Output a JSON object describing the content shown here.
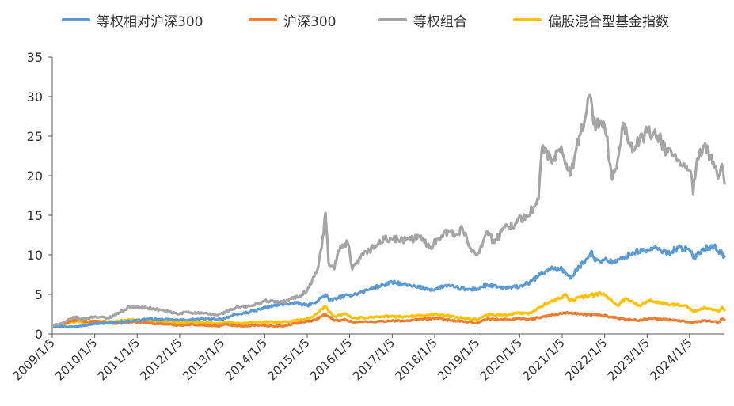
{
  "chart_data": {
    "type": "line",
    "title": "",
    "xlabel": "",
    "ylabel": "",
    "ylim": [
      0,
      35
    ],
    "yticks": [
      0,
      5,
      10,
      15,
      20,
      25,
      30,
      35
    ],
    "x_tick_labels": [
      "2009/1/5",
      "2010/1/5",
      "2011/1/5",
      "2012/1/5",
      "2013/1/5",
      "2014/1/5",
      "2015/1/5",
      "2016/1/5",
      "2017/1/5",
      "2018/1/5",
      "2019/1/5",
      "2020/1/5",
      "2021/1/5",
      "2022/1/5",
      "2023/1/5",
      "2024/1/5"
    ],
    "x_range": [
      "2009/1/5",
      "2024/10/31"
    ],
    "grid": false,
    "legend_position": "top",
    "series": [
      {
        "name": "等权相对沪深300",
        "color": "#5b9bd5",
        "points": [
          [
            "2009/1/5",
            1.0
          ],
          [
            "2009/4/1",
            0.95
          ],
          [
            "2009/7/1",
            0.9
          ],
          [
            "2009/10/1",
            1.1
          ],
          [
            "2010/1/5",
            1.3
          ],
          [
            "2010/4/1",
            1.35
          ],
          [
            "2010/7/1",
            1.5
          ],
          [
            "2010/10/1",
            1.6
          ],
          [
            "2011/1/5",
            1.7
          ],
          [
            "2011/4/1",
            1.9
          ],
          [
            "2011/7/1",
            1.85
          ],
          [
            "2011/10/1",
            1.8
          ],
          [
            "2012/1/5",
            1.75
          ],
          [
            "2012/4/1",
            1.8
          ],
          [
            "2012/7/1",
            1.9
          ],
          [
            "2012/10/1",
            1.85
          ],
          [
            "2013/1/5",
            1.9
          ],
          [
            "2013/4/1",
            2.3
          ],
          [
            "2013/7/1",
            2.6
          ],
          [
            "2013/10/1",
            2.9
          ],
          [
            "2014/1/5",
            3.3
          ],
          [
            "2014/4/1",
            3.6
          ],
          [
            "2014/7/1",
            3.8
          ],
          [
            "2014/10/1",
            3.9
          ],
          [
            "2015/1/5",
            3.6
          ],
          [
            "2015/3/1",
            3.9
          ],
          [
            "2015/5/1",
            4.5
          ],
          [
            "2015/6/15",
            5.0
          ],
          [
            "2015/7/15",
            4.2
          ],
          [
            "2015/10/1",
            4.6
          ],
          [
            "2016/1/5",
            4.9
          ],
          [
            "2016/4/1",
            5.2
          ],
          [
            "2016/7/1",
            5.7
          ],
          [
            "2016/10/1",
            6.1
          ],
          [
            "2017/1/5",
            6.5
          ],
          [
            "2017/4/1",
            6.3
          ],
          [
            "2017/7/1",
            6.0
          ],
          [
            "2017/10/1",
            5.8
          ],
          [
            "2018/1/5",
            5.6
          ],
          [
            "2018/4/1",
            6.1
          ],
          [
            "2018/7/1",
            5.9
          ],
          [
            "2018/10/1",
            5.6
          ],
          [
            "2019/1/5",
            5.7
          ],
          [
            "2019/4/1",
            6.2
          ],
          [
            "2019/7/1",
            5.9
          ],
          [
            "2019/10/1",
            5.8
          ],
          [
            "2020/1/5",
            6.0
          ],
          [
            "2020/4/1",
            6.5
          ],
          [
            "2020/7/1",
            7.5
          ],
          [
            "2020/10/1",
            8.3
          ],
          [
            "2021/1/5",
            8.2
          ],
          [
            "2021/3/15",
            7.0
          ],
          [
            "2021/6/1",
            8.5
          ],
          [
            "2021/8/1",
            9.5
          ],
          [
            "2021/9/15",
            10.5
          ],
          [
            "2021/10/15",
            9.2
          ],
          [
            "2022/1/5",
            9.4
          ],
          [
            "2022/4/1",
            9.0
          ],
          [
            "2022/7/1",
            9.8
          ],
          [
            "2022/10/1",
            10.4
          ],
          [
            "2023/1/5",
            10.6
          ],
          [
            "2023/4/1",
            10.8
          ],
          [
            "2023/7/1",
            10.2
          ],
          [
            "2023/10/1",
            10.9
          ],
          [
            "2024/1/5",
            10.6
          ],
          [
            "2024/2/5",
            9.6
          ],
          [
            "2024/5/1",
            10.8
          ],
          [
            "2024/8/1",
            11.1
          ],
          [
            "2024/10/31",
            9.8
          ]
        ]
      },
      {
        "name": "沪深300",
        "color": "#ed7d31",
        "points": [
          [
            "2009/1/5",
            1.0
          ],
          [
            "2009/4/1",
            1.3
          ],
          [
            "2009/8/1",
            1.8
          ],
          [
            "2009/10/1",
            1.6
          ],
          [
            "2010/1/5",
            1.6
          ],
          [
            "2010/7/1",
            1.3
          ],
          [
            "2010/11/1",
            1.5
          ],
          [
            "2011/4/1",
            1.4
          ],
          [
            "2011/10/1",
            1.2
          ],
          [
            "2012/1/5",
            1.1
          ],
          [
            "2012/5/1",
            1.2
          ],
          [
            "2012/12/1",
            1.0
          ],
          [
            "2013/2/1",
            1.2
          ],
          [
            "2013/6/25",
            1.0
          ],
          [
            "2013/10/1",
            1.1
          ],
          [
            "2014/6/1",
            1.0
          ],
          [
            "2014/12/1",
            1.5
          ],
          [
            "2015/3/1",
            1.7
          ],
          [
            "2015/6/8",
            2.5
          ],
          [
            "2015/8/25",
            1.7
          ],
          [
            "2015/12/1",
            1.8
          ],
          [
            "2016/2/1",
            1.5
          ],
          [
            "2016/10/1",
            1.6
          ],
          [
            "2017/6/1",
            1.7
          ],
          [
            "2018/1/20",
            2.0
          ],
          [
            "2018/6/1",
            1.7
          ],
          [
            "2018/12/31",
            1.4
          ],
          [
            "2019/4/1",
            1.9
          ],
          [
            "2019/10/1",
            1.8
          ],
          [
            "2020/1/5",
            2.0
          ],
          [
            "2020/3/20",
            1.8
          ],
          [
            "2020/8/1",
            2.2
          ],
          [
            "2021/2/10",
            2.7
          ],
          [
            "2021/6/1",
            2.5
          ],
          [
            "2021/12/1",
            2.4
          ],
          [
            "2022/4/25",
            2.0
          ],
          [
            "2022/10/31",
            1.7
          ],
          [
            "2023/1/25",
            2.0
          ],
          [
            "2023/7/1",
            1.8
          ],
          [
            "2024/2/5",
            1.5
          ],
          [
            "2024/5/20",
            1.7
          ],
          [
            "2024/9/13",
            1.5
          ],
          [
            "2024/10/8",
            1.9
          ],
          [
            "2024/10/31",
            1.8
          ]
        ]
      },
      {
        "name": "等权组合",
        "color": "#a5a5a5",
        "points": [
          [
            "2009/1/5",
            1.0
          ],
          [
            "2009/4/1",
            1.4
          ],
          [
            "2009/8/1",
            2.2
          ],
          [
            "2009/9/1",
            1.8
          ],
          [
            "2010/1/5",
            2.2
          ],
          [
            "2010/5/1",
            2.0
          ],
          [
            "2010/11/1",
            3.4
          ],
          [
            "2011/4/1",
            3.3
          ],
          [
            "2011/8/1",
            3.0
          ],
          [
            "2011/12/31",
            2.5
          ],
          [
            "2012/3/1",
            2.8
          ],
          [
            "2012/7/1",
            2.6
          ],
          [
            "2012/12/1",
            2.4
          ],
          [
            "2013/5/1",
            3.3
          ],
          [
            "2013/10/1",
            3.6
          ],
          [
            "2014/1/5",
            4.2
          ],
          [
            "2014/6/1",
            4.0
          ],
          [
            "2014/11/1",
            4.8
          ],
          [
            "2015/1/5",
            5.5
          ],
          [
            "2015/4/1",
            8.0
          ],
          [
            "2015/5/10",
            11.0
          ],
          [
            "2015/6/12",
            15.3
          ],
          [
            "2015/7/8",
            9.0
          ],
          [
            "2015/8/26",
            8.2
          ],
          [
            "2015/10/1",
            10.5
          ],
          [
            "2015/12/20",
            11.5
          ],
          [
            "2016/1/28",
            8.2
          ],
          [
            "2016/5/1",
            10.0
          ],
          [
            "2016/11/1",
            12.0
          ],
          [
            "2017/1/5",
            12.0
          ],
          [
            "2017/5/1",
            11.8
          ],
          [
            "2017/9/1",
            12.2
          ],
          [
            "2017/12/1",
            11.0
          ],
          [
            "2018/4/1",
            13.0
          ],
          [
            "2018/7/1",
            12.5
          ],
          [
            "2018/9/1",
            13.3
          ],
          [
            "2018/11/1",
            11.0
          ],
          [
            "2019/1/5",
            10.0
          ],
          [
            "2019/4/1",
            13.0
          ],
          [
            "2019/6/1",
            11.5
          ],
          [
            "2019/9/1",
            13.5
          ],
          [
            "2019/12/1",
            14.0
          ],
          [
            "2020/3/1",
            15.0
          ],
          [
            "2020/5/1",
            15.8
          ],
          [
            "2020/6/15",
            17.0
          ],
          [
            "2020/7/15",
            23.5
          ],
          [
            "2020/10/1",
            22.0
          ],
          [
            "2021/1/5",
            23.0
          ],
          [
            "2021/3/15",
            20.0
          ],
          [
            "2021/6/1",
            25.0
          ],
          [
            "2021/9/1",
            30.2
          ],
          [
            "2021/10/1",
            26.5
          ],
          [
            "2021/12/1",
            27.0
          ],
          [
            "2022/1/20",
            25.0
          ],
          [
            "2022/3/10",
            19.5
          ],
          [
            "2022/4/27",
            22.0
          ],
          [
            "2022/6/20",
            26.6
          ],
          [
            "2022/9/1",
            23.0
          ],
          [
            "2022/11/1",
            24.5
          ],
          [
            "2023/1/5",
            25.5
          ],
          [
            "2023/4/1",
            25.0
          ],
          [
            "2023/7/1",
            23.0
          ],
          [
            "2023/10/1",
            22.0
          ],
          [
            "2023/12/1",
            21.0
          ],
          [
            "2024/1/15",
            20.5
          ],
          [
            "2024/2/5",
            17.6
          ],
          [
            "2024/3/1",
            21.0
          ],
          [
            "2024/5/1",
            23.8
          ],
          [
            "2024/7/1",
            22.5
          ],
          [
            "2024/9/13",
            20.0
          ],
          [
            "2024/10/8",
            21.5
          ],
          [
            "2024/10/31",
            19.0
          ]
        ]
      },
      {
        "name": "偏股混合型基金指数",
        "color": "#ffc000",
        "points": [
          [
            "2009/1/5",
            1.0
          ],
          [
            "2009/4/1",
            1.2
          ],
          [
            "2009/8/1",
            1.6
          ],
          [
            "2009/10/1",
            1.4
          ],
          [
            "2010/1/5",
            1.6
          ],
          [
            "2010/7/1",
            1.6
          ],
          [
            "2010/11/1",
            1.8
          ],
          [
            "2011/4/1",
            1.7
          ],
          [
            "2011/10/1",
            1.5
          ],
          [
            "2012/1/5",
            1.4
          ],
          [
            "2012/5/1",
            1.5
          ],
          [
            "2012/12/1",
            1.3
          ],
          [
            "2013/2/1",
            1.5
          ],
          [
            "2013/6/25",
            1.3
          ],
          [
            "2013/10/1",
            1.5
          ],
          [
            "2014/6/1",
            1.5
          ],
          [
            "2014/12/1",
            1.8
          ],
          [
            "2015/3/1",
            2.2
          ],
          [
            "2015/6/8",
            3.5
          ],
          [
            "2015/8/25",
            2.2
          ],
          [
            "2015/12/1",
            2.6
          ],
          [
            "2016/2/1",
            2.0
          ],
          [
            "2016/10/1",
            2.2
          ],
          [
            "2017/6/1",
            2.2
          ],
          [
            "2018/1/20",
            2.5
          ],
          [
            "2018/6/1",
            2.2
          ],
          [
            "2018/12/31",
            1.8
          ],
          [
            "2019/4/1",
            2.4
          ],
          [
            "2019/10/1",
            2.4
          ],
          [
            "2020/1/5",
            2.7
          ],
          [
            "2020/3/20",
            2.5
          ],
          [
            "2020/8/1",
            3.7
          ],
          [
            "2021/2/10",
            4.9
          ],
          [
            "2021/3/15",
            4.2
          ],
          [
            "2021/6/1",
            4.6
          ],
          [
            "2021/12/1",
            5.1
          ],
          [
            "2022/1/20",
            4.8
          ],
          [
            "2022/4/25",
            3.6
          ],
          [
            "2022/7/5",
            4.5
          ],
          [
            "2022/10/31",
            3.6
          ],
          [
            "2023/1/25",
            4.2
          ],
          [
            "2023/7/1",
            3.8
          ],
          [
            "2023/12/1",
            3.6
          ],
          [
            "2024/2/5",
            2.8
          ],
          [
            "2024/5/20",
            3.3
          ],
          [
            "2024/9/13",
            2.8
          ],
          [
            "2024/10/8",
            3.4
          ],
          [
            "2024/10/31",
            3.0
          ]
        ]
      }
    ]
  }
}
